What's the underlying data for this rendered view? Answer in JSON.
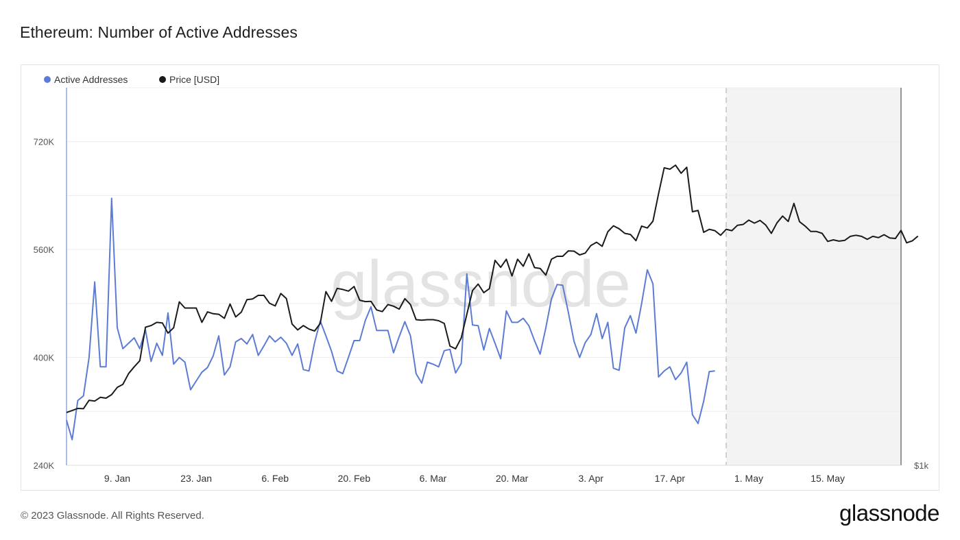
{
  "header": {
    "title": "Ethereum: Number of Active Addresses"
  },
  "footer": {
    "copyright": "© 2023 Glassnode. All Rights Reserved.",
    "logo_text": "glassnode"
  },
  "watermark": "glassnode",
  "colors": {
    "active_addresses": "#5b7bd5",
    "price": "#1a1a1a",
    "grid": "#ececec",
    "forecast_band": "#f3f3f3"
  },
  "chart_data": {
    "type": "line",
    "title": "Ethereum: Number of Active Addresses",
    "legend_position": "top-left",
    "grid": true,
    "x_range": [
      "2022-12-31",
      "2023-05-28"
    ],
    "x_ticks": [
      {
        "date": "2023-01-09",
        "label": "9. Jan"
      },
      {
        "date": "2023-01-23",
        "label": "23. Jan"
      },
      {
        "date": "2023-02-06",
        "label": "6. Feb"
      },
      {
        "date": "2023-02-20",
        "label": "20. Feb"
      },
      {
        "date": "2023-03-06",
        "label": "6. Mar"
      },
      {
        "date": "2023-03-20",
        "label": "20. Mar"
      },
      {
        "date": "2023-04-03",
        "label": "3. Apr"
      },
      {
        "date": "2023-04-17",
        "label": "17. Apr"
      },
      {
        "date": "2023-05-01",
        "label": "1. May"
      },
      {
        "date": "2023-05-15",
        "label": "15. May"
      }
    ],
    "y_left": {
      "range": [
        240000,
        800000
      ],
      "ticks": [
        {
          "value": 240000,
          "label": "240K"
        },
        {
          "value": 400000,
          "label": "400K"
        },
        {
          "value": 560000,
          "label": "560K"
        },
        {
          "value": 720000,
          "label": "720K"
        }
      ],
      "grid_values": [
        320000,
        400000,
        480000,
        560000,
        640000,
        720000
      ]
    },
    "y_right": {
      "range": [
        1000,
        2400
      ],
      "ticks": [
        {
          "value": 1000,
          "label": "$1k"
        }
      ]
    },
    "forecast_start": "2023-04-27",
    "series": [
      {
        "name": "Active Addresses",
        "axis": "left",
        "start_date": "2022-12-31",
        "values": [
          307000,
          278000,
          336000,
          343000,
          400000,
          512000,
          386000,
          386000,
          636000,
          444000,
          413000,
          421000,
          429000,
          413000,
          441000,
          394000,
          421000,
          403000,
          466000,
          390000,
          400000,
          393000,
          352000,
          365000,
          378000,
          385000,
          402000,
          432000,
          374000,
          386000,
          423000,
          428000,
          420000,
          434000,
          403000,
          417000,
          432000,
          423000,
          430000,
          421000,
          403000,
          420000,
          382000,
          380000,
          422000,
          454000,
          432000,
          409000,
          380000,
          376000,
          400000,
          425000,
          425000,
          455000,
          475000,
          440000,
          440000,
          440000,
          407000,
          431000,
          453000,
          432000,
          376000,
          362000,
          393000,
          390000,
          386000,
          410000,
          412000,
          377000,
          391000,
          524000,
          448000,
          447000,
          411000,
          443000,
          421000,
          398000,
          469000,
          452000,
          452000,
          458000,
          447000,
          425000,
          405000,
          444000,
          487000,
          508000,
          507000,
          467000,
          424000,
          400000,
          422000,
          434000,
          465000,
          428000,
          452000,
          384000,
          381000,
          444000,
          462000,
          436000,
          480000,
          530000,
          509000,
          371000,
          380000,
          386000,
          367000,
          377000,
          393000,
          315000,
          302000,
          335000,
          379000,
          380000
        ]
      },
      {
        "name": "Price [USD]",
        "axis": "right",
        "start_date": "2022-12-31",
        "values": [
          1196,
          1203,
          1211,
          1210,
          1241,
          1238,
          1252,
          1249,
          1262,
          1289,
          1300,
          1340,
          1365,
          1388,
          1512,
          1518,
          1530,
          1528,
          1490,
          1510,
          1606,
          1583,
          1583,
          1583,
          1530,
          1569,
          1562,
          1560,
          1545,
          1598,
          1550,
          1568,
          1614,
          1617,
          1630,
          1630,
          1601,
          1591,
          1637,
          1618,
          1524,
          1502,
          1518,
          1505,
          1498,
          1526,
          1644,
          1608,
          1656,
          1652,
          1646,
          1663,
          1612,
          1607,
          1608,
          1576,
          1570,
          1596,
          1590,
          1579,
          1618,
          1596,
          1540,
          1538,
          1540,
          1540,
          1536,
          1526,
          1442,
          1432,
          1472,
          1560,
          1648,
          1672,
          1640,
          1655,
          1760,
          1734,
          1764,
          1702,
          1764,
          1738,
          1784,
          1733,
          1730,
          1705,
          1764,
          1775,
          1775,
          1795,
          1794,
          1780,
          1787,
          1815,
          1827,
          1812,
          1866,
          1888,
          1877,
          1860,
          1856,
          1833,
          1887,
          1880,
          1905,
          2007,
          2103,
          2098,
          2113,
          2083,
          2105,
          1940,
          1945,
          1864,
          1875,
          1870,
          1853,
          1875,
          1870,
          1890,
          1893,
          1909,
          1898,
          1908,
          1891,
          1860,
          1899,
          1924,
          1904,
          1971,
          1903,
          1887,
          1867,
          1867,
          1860,
          1830,
          1836,
          1831,
          1834,
          1849,
          1853,
          1849,
          1838,
          1849,
          1844,
          1855,
          1843,
          1841,
          1871,
          1825,
          1832,
          1850
        ]
      }
    ]
  }
}
